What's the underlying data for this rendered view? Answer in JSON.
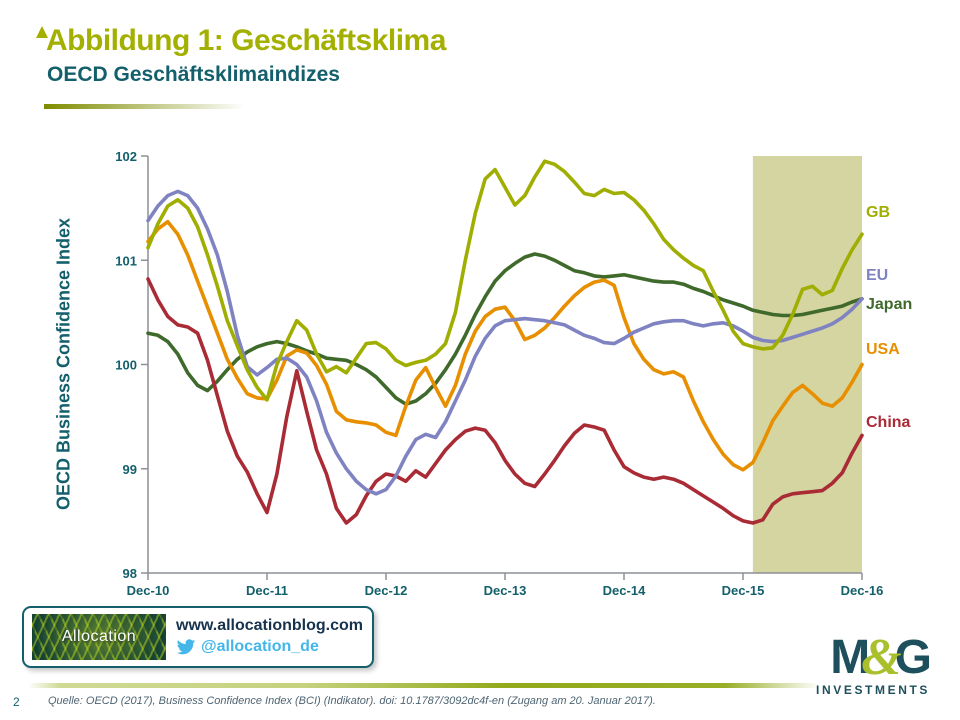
{
  "slide": {
    "title": "Abbildung 1: Geschäftsklima",
    "subtitle": "OECD Geschäftsklimaindizes",
    "page_number": "2",
    "source": "Quelle: OECD (2017), Business Confidence Index (BCI) (Indikator). doi: 10.1787/3092dc4f-en (Zugang am 20. Januar 2017)."
  },
  "footer_badge": {
    "logo_text": "Allocation",
    "website": "www.allocationblog.com",
    "twitter_handle": "@allocation_de",
    "twitter_icon_color": "#45B6EA"
  },
  "brand": {
    "m": "M",
    "amp": "&",
    "g": "G",
    "investments": "INVESTMENTS",
    "teal": "#1D4F5C",
    "lime": "#A9BF2C"
  },
  "chart_data": {
    "type": "line",
    "ylabel": "OECD Business Confidence Index",
    "ylim": [
      98,
      102
    ],
    "yticks": [
      98,
      99,
      100,
      101,
      102
    ],
    "xticklabels": [
      "Dec-10",
      "Dec-11",
      "Dec-12",
      "Dec-13",
      "Dec-14",
      "Dec-15",
      "Dec-16"
    ],
    "x_unit": "monthly from Dec-10 to Dec-16",
    "grid": "off",
    "legend_position": "right-of-plot",
    "colors": {
      "axis": "#8C9196",
      "tick_text": "#135F6B"
    },
    "highlight_band": {
      "from_label": "Jan-16",
      "to_label": "Dec-16",
      "from_index": 61,
      "to_index": 72,
      "color": "#D5D5A1"
    },
    "series": [
      {
        "name": "GB",
        "color": "#9FAE00",
        "values": [
          101.12,
          101.35,
          101.52,
          101.58,
          101.5,
          101.32,
          101.05,
          100.75,
          100.42,
          100.18,
          99.95,
          99.78,
          99.66,
          100.0,
          100.22,
          100.42,
          100.33,
          100.1,
          99.93,
          99.98,
          99.92,
          100.06,
          100.2,
          100.21,
          100.15,
          100.04,
          99.99,
          100.02,
          100.04,
          100.1,
          100.2,
          100.5,
          101.0,
          101.45,
          101.78,
          101.87,
          101.7,
          101.53,
          101.62,
          101.8,
          101.95,
          101.92,
          101.85,
          101.75,
          101.64,
          101.62,
          101.68,
          101.64,
          101.65,
          101.58,
          101.48,
          101.35,
          101.2,
          101.1,
          101.02,
          100.95,
          100.9,
          100.7,
          100.52,
          100.32,
          100.2,
          100.17,
          100.15,
          100.16,
          100.28,
          100.48,
          100.72,
          100.75,
          100.67,
          100.71,
          100.92,
          101.1,
          101.25
        ]
      },
      {
        "name": "EU",
        "color": "#7F83C1",
        "values": [
          101.38,
          101.52,
          101.62,
          101.66,
          101.62,
          101.5,
          101.3,
          101.05,
          100.7,
          100.28,
          99.98,
          99.9,
          99.97,
          100.05,
          100.06,
          100.0,
          99.88,
          99.65,
          99.35,
          99.15,
          99.0,
          98.88,
          98.8,
          98.76,
          98.8,
          98.93,
          99.12,
          99.28,
          99.33,
          99.3,
          99.45,
          99.65,
          99.85,
          100.08,
          100.25,
          100.37,
          100.42,
          100.43,
          100.44,
          100.43,
          100.42,
          100.4,
          100.38,
          100.33,
          100.28,
          100.25,
          100.21,
          100.2,
          100.25,
          100.31,
          100.35,
          100.39,
          100.41,
          100.42,
          100.42,
          100.39,
          100.37,
          100.39,
          100.4,
          100.37,
          100.32,
          100.26,
          100.23,
          100.22,
          100.23,
          100.26,
          100.29,
          100.32,
          100.35,
          100.39,
          100.45,
          100.53,
          100.63
        ]
      },
      {
        "name": "Japan",
        "color": "#3F6A2B",
        "values": [
          100.3,
          100.28,
          100.22,
          100.1,
          99.92,
          99.8,
          99.75,
          99.84,
          99.95,
          100.05,
          100.12,
          100.17,
          100.2,
          100.22,
          100.2,
          100.17,
          100.13,
          100.1,
          100.06,
          100.05,
          100.04,
          100.0,
          99.95,
          99.88,
          99.78,
          99.68,
          99.62,
          99.65,
          99.72,
          99.82,
          99.95,
          100.1,
          100.28,
          100.48,
          100.65,
          100.8,
          100.9,
          100.97,
          101.03,
          101.06,
          101.04,
          101.0,
          100.95,
          100.9,
          100.88,
          100.85,
          100.84,
          100.85,
          100.86,
          100.84,
          100.82,
          100.8,
          100.79,
          100.79,
          100.77,
          100.73,
          100.7,
          100.66,
          100.62,
          100.59,
          100.56,
          100.52,
          100.5,
          100.48,
          100.47,
          100.47,
          100.48,
          100.5,
          100.52,
          100.54,
          100.56,
          100.6,
          100.63
        ]
      },
      {
        "name": "USA",
        "color": "#E78F00",
        "values": [
          101.18,
          101.3,
          101.37,
          101.25,
          101.05,
          100.8,
          100.55,
          100.3,
          100.05,
          99.87,
          99.72,
          99.68,
          99.67,
          99.85,
          100.08,
          100.14,
          100.11,
          99.99,
          99.81,
          99.55,
          99.47,
          99.45,
          99.44,
          99.42,
          99.35,
          99.32,
          99.6,
          99.85,
          99.97,
          99.78,
          99.6,
          99.8,
          100.1,
          100.32,
          100.46,
          100.53,
          100.55,
          100.42,
          100.24,
          100.28,
          100.35,
          100.45,
          100.56,
          100.66,
          100.74,
          100.79,
          100.81,
          100.76,
          100.45,
          100.2,
          100.05,
          99.95,
          99.91,
          99.93,
          99.88,
          99.65,
          99.45,
          99.28,
          99.14,
          99.04,
          98.99,
          99.06,
          99.25,
          99.46,
          99.6,
          99.73,
          99.8,
          99.72,
          99.63,
          99.6,
          99.68,
          99.83,
          100.0
        ]
      },
      {
        "name": "China",
        "color": "#A92B35",
        "values": [
          100.82,
          100.62,
          100.46,
          100.38,
          100.36,
          100.3,
          100.04,
          99.7,
          99.36,
          99.12,
          98.97,
          98.76,
          98.58,
          98.95,
          99.5,
          99.94,
          99.55,
          99.18,
          98.95,
          98.62,
          98.48,
          98.56,
          98.74,
          98.88,
          98.95,
          98.93,
          98.88,
          98.98,
          98.92,
          99.05,
          99.18,
          99.28,
          99.36,
          99.39,
          99.37,
          99.25,
          99.08,
          98.95,
          98.86,
          98.83,
          98.95,
          99.08,
          99.22,
          99.34,
          99.42,
          99.4,
          99.37,
          99.18,
          99.02,
          98.96,
          98.92,
          98.9,
          98.92,
          98.9,
          98.86,
          98.8,
          98.74,
          98.68,
          98.62,
          98.55,
          98.5,
          98.48,
          98.51,
          98.66,
          98.73,
          98.76,
          98.77,
          98.78,
          98.79,
          98.86,
          98.96,
          99.15,
          99.32
        ]
      }
    ]
  }
}
